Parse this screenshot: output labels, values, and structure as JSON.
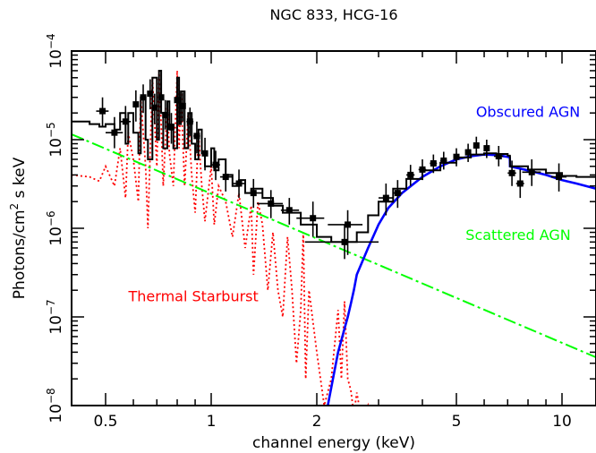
{
  "chart_data": {
    "type": "line",
    "title": "NGC 833, HCG-16",
    "xlabel": "channel energy (keV)",
    "ylabel": "Photons/cm² s keV",
    "ylabel_parts": {
      "pre": "Photons/cm",
      "sup": "2",
      "post": " s keV"
    },
    "x_scale": "log",
    "y_scale": "log",
    "xlim": [
      0.4,
      12.5
    ],
    "ylim": [
      1e-08,
      0.0001
    ],
    "grid": false,
    "x_ticks": [
      {
        "value": 0.5,
        "label": "0.5"
      },
      {
        "value": 1,
        "label": "1"
      },
      {
        "value": 2,
        "label": "2"
      },
      {
        "value": 5,
        "label": "5"
      },
      {
        "value": 10,
        "label": "10"
      }
    ],
    "y_ticks": [
      {
        "value": 1e-08,
        "base": "10",
        "exp": "−8"
      },
      {
        "value": 1e-07,
        "base": "10",
        "exp": "−7"
      },
      {
        "value": 1e-06,
        "base": "10",
        "exp": "−6"
      },
      {
        "value": 1e-05,
        "base": "10",
        "exp": "−5"
      },
      {
        "value": 0.0001,
        "base": "10",
        "exp": "−4"
      }
    ],
    "annotations": [
      {
        "text": "Obscured AGN",
        "color": "#0000ff",
        "x": 8.0,
        "y": 1.8e-05,
        "anchor": "middle"
      },
      {
        "text": "Scattered AGN",
        "color": "#00ff00",
        "x": 7.5,
        "y": 7.4e-07,
        "anchor": "middle"
      },
      {
        "text": "Thermal Starburst",
        "color": "#ff0000",
        "x": 0.89,
        "y": 1.5e-07,
        "anchor": "middle"
      }
    ],
    "series": [
      {
        "name": "Thermal Starburst",
        "color": "#ff0000",
        "style": "dotted",
        "x": [
          0.4,
          0.45,
          0.48,
          0.5,
          0.53,
          0.55,
          0.57,
          0.58,
          0.6,
          0.62,
          0.63,
          0.65,
          0.66,
          0.68,
          0.7,
          0.71,
          0.72,
          0.73,
          0.75,
          0.76,
          0.78,
          0.8,
          0.81,
          0.82,
          0.84,
          0.86,
          0.88,
          0.9,
          0.92,
          0.94,
          0.96,
          1.0,
          1.02,
          1.05,
          1.1,
          1.15,
          1.2,
          1.25,
          1.3,
          1.32,
          1.36,
          1.4,
          1.45,
          1.5,
          1.55,
          1.6,
          1.65,
          1.7,
          1.75,
          1.8,
          1.83,
          1.86,
          1.9,
          2.0,
          2.1,
          2.2,
          2.3,
          2.35,
          2.4,
          2.45,
          2.5,
          2.55,
          2.6,
          2.7,
          2.8,
          2.9,
          3.0,
          3.1
        ],
        "y": [
          4e-06,
          3.8e-06,
          3.4e-06,
          5e-06,
          3e-06,
          8e-06,
          2.2e-06,
          1.2e-05,
          6e-06,
          2e-06,
          3e-05,
          5e-06,
          1e-06,
          5e-05,
          5e-06,
          6e-05,
          1.5e-05,
          3e-06,
          2.6e-05,
          7e-06,
          3e-06,
          6e-05,
          8e-06,
          3.4e-05,
          3e-06,
          2e-05,
          4e-06,
          1.5e-06,
          1.2e-05,
          3e-06,
          1.2e-06,
          5e-06,
          1.1e-06,
          3e-06,
          2e-06,
          8e-07,
          2.5e-06,
          6e-07,
          1.8e-06,
          3e-07,
          2e-06,
          1.1e-06,
          2e-07,
          9e-07,
          2e-07,
          1e-07,
          8e-07,
          2e-07,
          3e-08,
          1.2e-07,
          9e-07,
          2e-08,
          2e-07,
          4e-08,
          1e-08,
          2e-08,
          1.2e-07,
          2e-08,
          1.5e-07,
          2e-08,
          1.5e-08,
          8e-09,
          1.4e-08,
          6e-09,
          1e-08,
          6e-09,
          1e-08,
          5e-09
        ]
      },
      {
        "name": "Scattered AGN",
        "color": "#00ff00",
        "style": "dashdot",
        "x": [
          0.4,
          12.5
        ],
        "y": [
          1.15e-05,
          3.5e-08
        ]
      },
      {
        "name": "Obscured AGN",
        "color": "#0000ff",
        "style": "solid",
        "x": [
          2.15,
          2.3,
          2.45,
          2.5,
          2.55,
          2.6,
          2.8,
          3.0,
          3.2,
          3.5,
          4.0,
          4.5,
          5.0,
          5.5,
          6.0,
          6.5,
          7.0,
          7.1,
          7.11,
          8.0,
          9.0,
          10.0,
          11.0,
          12.5
        ],
        "y": [
          1e-08,
          4e-08,
          1e-07,
          1.4e-07,
          2e-07,
          3e-07,
          6e-07,
          1.1e-06,
          1.7e-06,
          2.5e-06,
          3.8e-06,
          5e-06,
          6e-06,
          6.5e-06,
          6.8e-06,
          6.7e-06,
          6.4e-06,
          6.3e-06,
          5e-06,
          4.5e-06,
          4e-06,
          3.5e-06,
          3.2e-06,
          2.8e-06
        ]
      },
      {
        "name": "Total model",
        "color": "#000000",
        "style": "step",
        "x": [
          0.4,
          0.45,
          0.48,
          0.5,
          0.53,
          0.55,
          0.57,
          0.58,
          0.6,
          0.62,
          0.63,
          0.65,
          0.66,
          0.68,
          0.7,
          0.71,
          0.72,
          0.73,
          0.75,
          0.76,
          0.78,
          0.8,
          0.81,
          0.82,
          0.84,
          0.86,
          0.88,
          0.9,
          0.92,
          0.94,
          0.96,
          1.0,
          1.02,
          1.05,
          1.1,
          1.15,
          1.2,
          1.25,
          1.3,
          1.4,
          1.5,
          1.6,
          1.8,
          2.0,
          2.2,
          2.4,
          2.6,
          2.8,
          3.0,
          3.3,
          3.6,
          4.0,
          4.5,
          5.0,
          5.5,
          6.0,
          6.5,
          7.0,
          7.1,
          7.11,
          8.0,
          9.0,
          10.0,
          11.0,
          12.5
        ],
        "y": [
          1.6e-05,
          1.5e-05,
          1.4e-05,
          1.5e-05,
          1.3e-05,
          2e-05,
          9e-06,
          2e-05,
          1.2e-05,
          7e-06,
          3e-05,
          1e-05,
          6e-06,
          5e-05,
          1e-05,
          6e-05,
          2e-05,
          8e-06,
          2.7e-05,
          1.3e-05,
          8e-06,
          5e-05,
          1.5e-05,
          3.5e-05,
          8e-06,
          2e-05,
          9e-06,
          6e-06,
          1.3e-05,
          7e-06,
          5e-06,
          8e-06,
          4.5e-06,
          6e-06,
          4e-06,
          3e-06,
          3.5e-06,
          2.5e-06,
          2.8e-06,
          2.2e-06,
          1.8e-06,
          1.5e-06,
          1.1e-06,
          8e-07,
          7e-07,
          7e-07,
          9e-07,
          1.4e-06,
          2e-06,
          2.8e-06,
          3.6e-06,
          4.5e-06,
          5.5e-06,
          6.3e-06,
          6.8e-06,
          7e-06,
          6.9e-06,
          6.6e-06,
          6.5e-06,
          5e-06,
          4.6e-06,
          4.2e-06,
          3.9e-06,
          3.8e-06,
          3.7e-06
        ]
      }
    ],
    "data_points": [
      {
        "x": 0.49,
        "y": 2.1e-05,
        "xerr": [
          0.47,
          0.51
        ],
        "yerr": [
          1.4e-05,
          3e-05
        ]
      },
      {
        "x": 0.53,
        "y": 1.2e-05,
        "xerr": [
          0.5,
          0.56
        ],
        "yerr": [
          8e-06,
          1.8e-05
        ]
      },
      {
        "x": 0.57,
        "y": 1.6e-05,
        "xerr": [
          0.55,
          0.59
        ],
        "yerr": [
          1e-05,
          2.4e-05
        ]
      },
      {
        "x": 0.61,
        "y": 2.5e-05,
        "xerr": [
          0.6,
          0.62
        ],
        "yerr": [
          1.6e-05,
          3.6e-05
        ]
      },
      {
        "x": 0.64,
        "y": 3e-05,
        "xerr": [
          0.63,
          0.65
        ],
        "yerr": [
          2e-05,
          4.2e-05
        ]
      },
      {
        "x": 0.67,
        "y": 3.3e-05,
        "xerr": [
          0.66,
          0.68
        ],
        "yerr": [
          2.2e-05,
          4.8e-05
        ]
      },
      {
        "x": 0.69,
        "y": 2.3e-05,
        "xerr": [
          0.68,
          0.7
        ],
        "yerr": [
          1.5e-05,
          3.3e-05
        ]
      },
      {
        "x": 0.72,
        "y": 3e-05,
        "xerr": [
          0.71,
          0.73
        ],
        "yerr": [
          2e-05,
          4.5e-05
        ]
      },
      {
        "x": 0.74,
        "y": 1.9e-05,
        "xerr": [
          0.73,
          0.75
        ],
        "yerr": [
          1.3e-05,
          2.8e-05
        ]
      },
      {
        "x": 0.77,
        "y": 1.4e-05,
        "xerr": [
          0.76,
          0.78
        ],
        "yerr": [
          9e-06,
          2e-05
        ]
      },
      {
        "x": 0.8,
        "y": 2.8e-05,
        "xerr": [
          0.79,
          0.81
        ],
        "yerr": [
          1.9e-05,
          4e-05
        ]
      },
      {
        "x": 0.83,
        "y": 2.4e-05,
        "xerr": [
          0.82,
          0.84
        ],
        "yerr": [
          1.6e-05,
          3.4e-05
        ]
      },
      {
        "x": 0.87,
        "y": 1.6e-05,
        "xerr": [
          0.85,
          0.89
        ],
        "yerr": [
          1.1e-05,
          2.3e-05
        ]
      },
      {
        "x": 0.91,
        "y": 1.1e-05,
        "xerr": [
          0.89,
          0.93
        ],
        "yerr": [
          7e-06,
          1.6e-05
        ]
      },
      {
        "x": 0.96,
        "y": 7e-06,
        "xerr": [
          0.94,
          0.98
        ],
        "yerr": [
          4.5e-06,
          1.05e-05
        ]
      },
      {
        "x": 1.03,
        "y": 5.2e-06,
        "xerr": [
          1.0,
          1.06
        ],
        "yerr": [
          3.5e-06,
          7.5e-06
        ]
      },
      {
        "x": 1.1,
        "y": 3.8e-06,
        "xerr": [
          1.06,
          1.15
        ],
        "yerr": [
          2.6e-06,
          5.5e-06
        ]
      },
      {
        "x": 1.2,
        "y": 3.2e-06,
        "xerr": [
          1.15,
          1.25
        ],
        "yerr": [
          2.2e-06,
          4.6e-06
        ]
      },
      {
        "x": 1.32,
        "y": 2.5e-06,
        "xerr": [
          1.25,
          1.4
        ],
        "yerr": [
          1.7e-06,
          3.6e-06
        ]
      },
      {
        "x": 1.48,
        "y": 1.9e-06,
        "xerr": [
          1.35,
          1.6
        ],
        "yerr": [
          1.3e-06,
          2.7e-06
        ]
      },
      {
        "x": 1.67,
        "y": 1.6e-06,
        "xerr": [
          1.58,
          1.78
        ],
        "yerr": [
          1.1e-06,
          2.2e-06
        ]
      },
      {
        "x": 1.95,
        "y": 1.3e-06,
        "xerr": [
          1.75,
          2.1
        ],
        "yerr": [
          8e-07,
          2e-06
        ]
      },
      {
        "x": 2.45,
        "y": 1.1e-06,
        "xerr": [
          2.15,
          2.7
        ],
        "yerr": [
          5e-07,
          1.6e-06
        ]
      },
      {
        "x": 2.4,
        "y": 7e-07,
        "xerr": [
          1.85,
          3.0
        ],
        "yerr": [
          4.5e-07,
          1.1e-06
        ]
      },
      {
        "x": 3.15,
        "y": 2.2e-06,
        "xerr": [
          3.0,
          3.3
        ],
        "yerr": [
          1.4e-06,
          3.2e-06
        ]
      },
      {
        "x": 3.4,
        "y": 2.5e-06,
        "xerr": [
          3.3,
          3.5
        ],
        "yerr": [
          1.7e-06,
          3.5e-06
        ]
      },
      {
        "x": 3.7,
        "y": 4e-06,
        "xerr": [
          3.6,
          3.8
        ],
        "yerr": [
          3e-06,
          5.2e-06
        ]
      },
      {
        "x": 4.0,
        "y": 4.6e-06,
        "xerr": [
          3.9,
          4.1
        ],
        "yerr": [
          3.5e-06,
          6e-06
        ]
      },
      {
        "x": 4.3,
        "y": 5.4e-06,
        "xerr": [
          4.2,
          4.4
        ],
        "yerr": [
          4.2e-06,
          6.8e-06
        ]
      },
      {
        "x": 4.6,
        "y": 5.8e-06,
        "xerr": [
          4.5,
          4.7
        ],
        "yerr": [
          4.6e-06,
          7.3e-06
        ]
      },
      {
        "x": 5.0,
        "y": 6.4e-06,
        "xerr": [
          4.9,
          5.1
        ],
        "yerr": [
          5e-06,
          8e-06
        ]
      },
      {
        "x": 5.4,
        "y": 7.2e-06,
        "xerr": [
          5.3,
          5.5
        ],
        "yerr": [
          5.6e-06,
          9e-06
        ]
      },
      {
        "x": 5.7,
        "y": 8.6e-06,
        "xerr": [
          5.6,
          5.8
        ],
        "yerr": [
          6.8e-06,
          1.08e-05
        ]
      },
      {
        "x": 6.1,
        "y": 8e-06,
        "xerr": [
          6.0,
          6.2
        ],
        "yerr": [
          6.2e-06,
          1e-05
        ]
      },
      {
        "x": 6.6,
        "y": 6.5e-06,
        "xerr": [
          6.4,
          6.8
        ],
        "yerr": [
          5e-06,
          8.5e-06
        ]
      },
      {
        "x": 7.2,
        "y": 4.2e-06,
        "xerr": [
          7.0,
          7.4
        ],
        "yerr": [
          3e-06,
          5.8e-06
        ]
      },
      {
        "x": 7.6,
        "y": 3.2e-06,
        "xerr": [
          7.4,
          7.8
        ],
        "yerr": [
          2.2e-06,
          4.6e-06
        ]
      },
      {
        "x": 8.2,
        "y": 4.3e-06,
        "xerr": [
          7.7,
          8.7
        ],
        "yerr": [
          3e-06,
          6e-06
        ]
      },
      {
        "x": 9.8,
        "y": 3.8e-06,
        "xerr": [
          9.3,
          10.3
        ],
        "yerr": [
          2.6e-06,
          5.4e-06
        ]
      }
    ]
  }
}
